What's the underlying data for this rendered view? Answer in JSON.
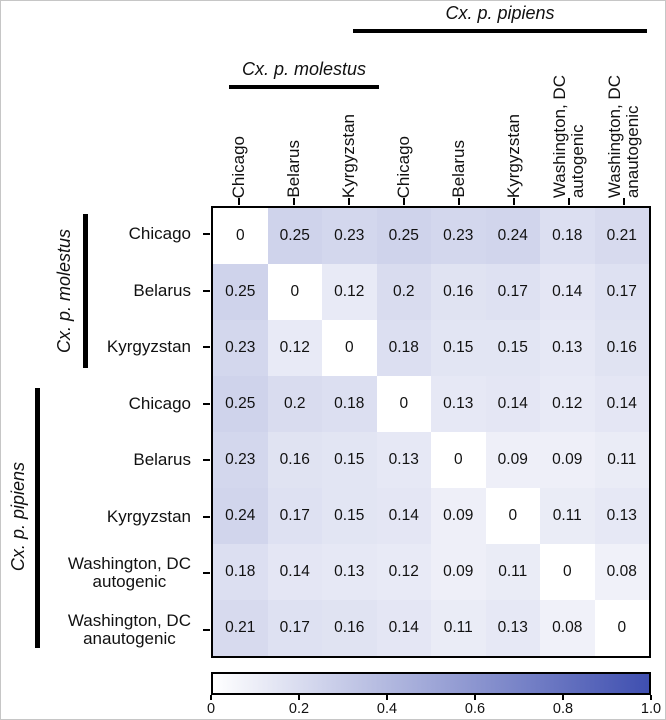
{
  "chart_data": {
    "type": "heatmap",
    "title": "",
    "rows": [
      "Chicago",
      "Belarus",
      "Kyrgyzstan",
      "Chicago",
      "Belarus",
      "Kyrgyzstan",
      "Washington, DC\nautogenic",
      "Washington, DC\nanautogenic"
    ],
    "columns": [
      "Chicago",
      "Belarus",
      "Kyrgyzstan",
      "Chicago",
      "Belarus",
      "Kyrgyzstan",
      "Washington, DC\nautogenic",
      "Washington, DC\nanautogenic"
    ],
    "row_groups": [
      {
        "label": "Cx. p. molestus",
        "start": 0,
        "end": 2
      },
      {
        "label": "Cx. p. pipiens",
        "start": 3,
        "end": 7
      }
    ],
    "col_groups": [
      {
        "label": "Cx. p. molestus",
        "start": 0,
        "end": 2
      },
      {
        "label": "Cx. p. pipiens",
        "start": 3,
        "end": 7
      }
    ],
    "values": [
      [
        0,
        0.25,
        0.23,
        0.25,
        0.23,
        0.24,
        0.18,
        0.21
      ],
      [
        0.25,
        0,
        0.12,
        0.2,
        0.16,
        0.17,
        0.14,
        0.17
      ],
      [
        0.23,
        0.12,
        0,
        0.18,
        0.15,
        0.15,
        0.13,
        0.16
      ],
      [
        0.25,
        0.2,
        0.18,
        0,
        0.13,
        0.14,
        0.12,
        0.14
      ],
      [
        0.23,
        0.16,
        0.15,
        0.13,
        0,
        0.09,
        0.09,
        0.11
      ],
      [
        0.24,
        0.17,
        0.15,
        0.14,
        0.09,
        0,
        0.11,
        0.13
      ],
      [
        0.18,
        0.14,
        0.13,
        0.12,
        0.09,
        0.11,
        0,
        0.08
      ],
      [
        0.21,
        0.17,
        0.16,
        0.14,
        0.11,
        0.13,
        0.08,
        0
      ]
    ],
    "colorbar": {
      "min": 0,
      "max": 1,
      "ticks": [
        "0",
        "0.2",
        "0.4",
        "0.6",
        "0.8",
        "1.0"
      ],
      "color_low": "#ffffff",
      "color_high": "#3f4fb0"
    },
    "grid": false,
    "legend_position": "bottom"
  }
}
